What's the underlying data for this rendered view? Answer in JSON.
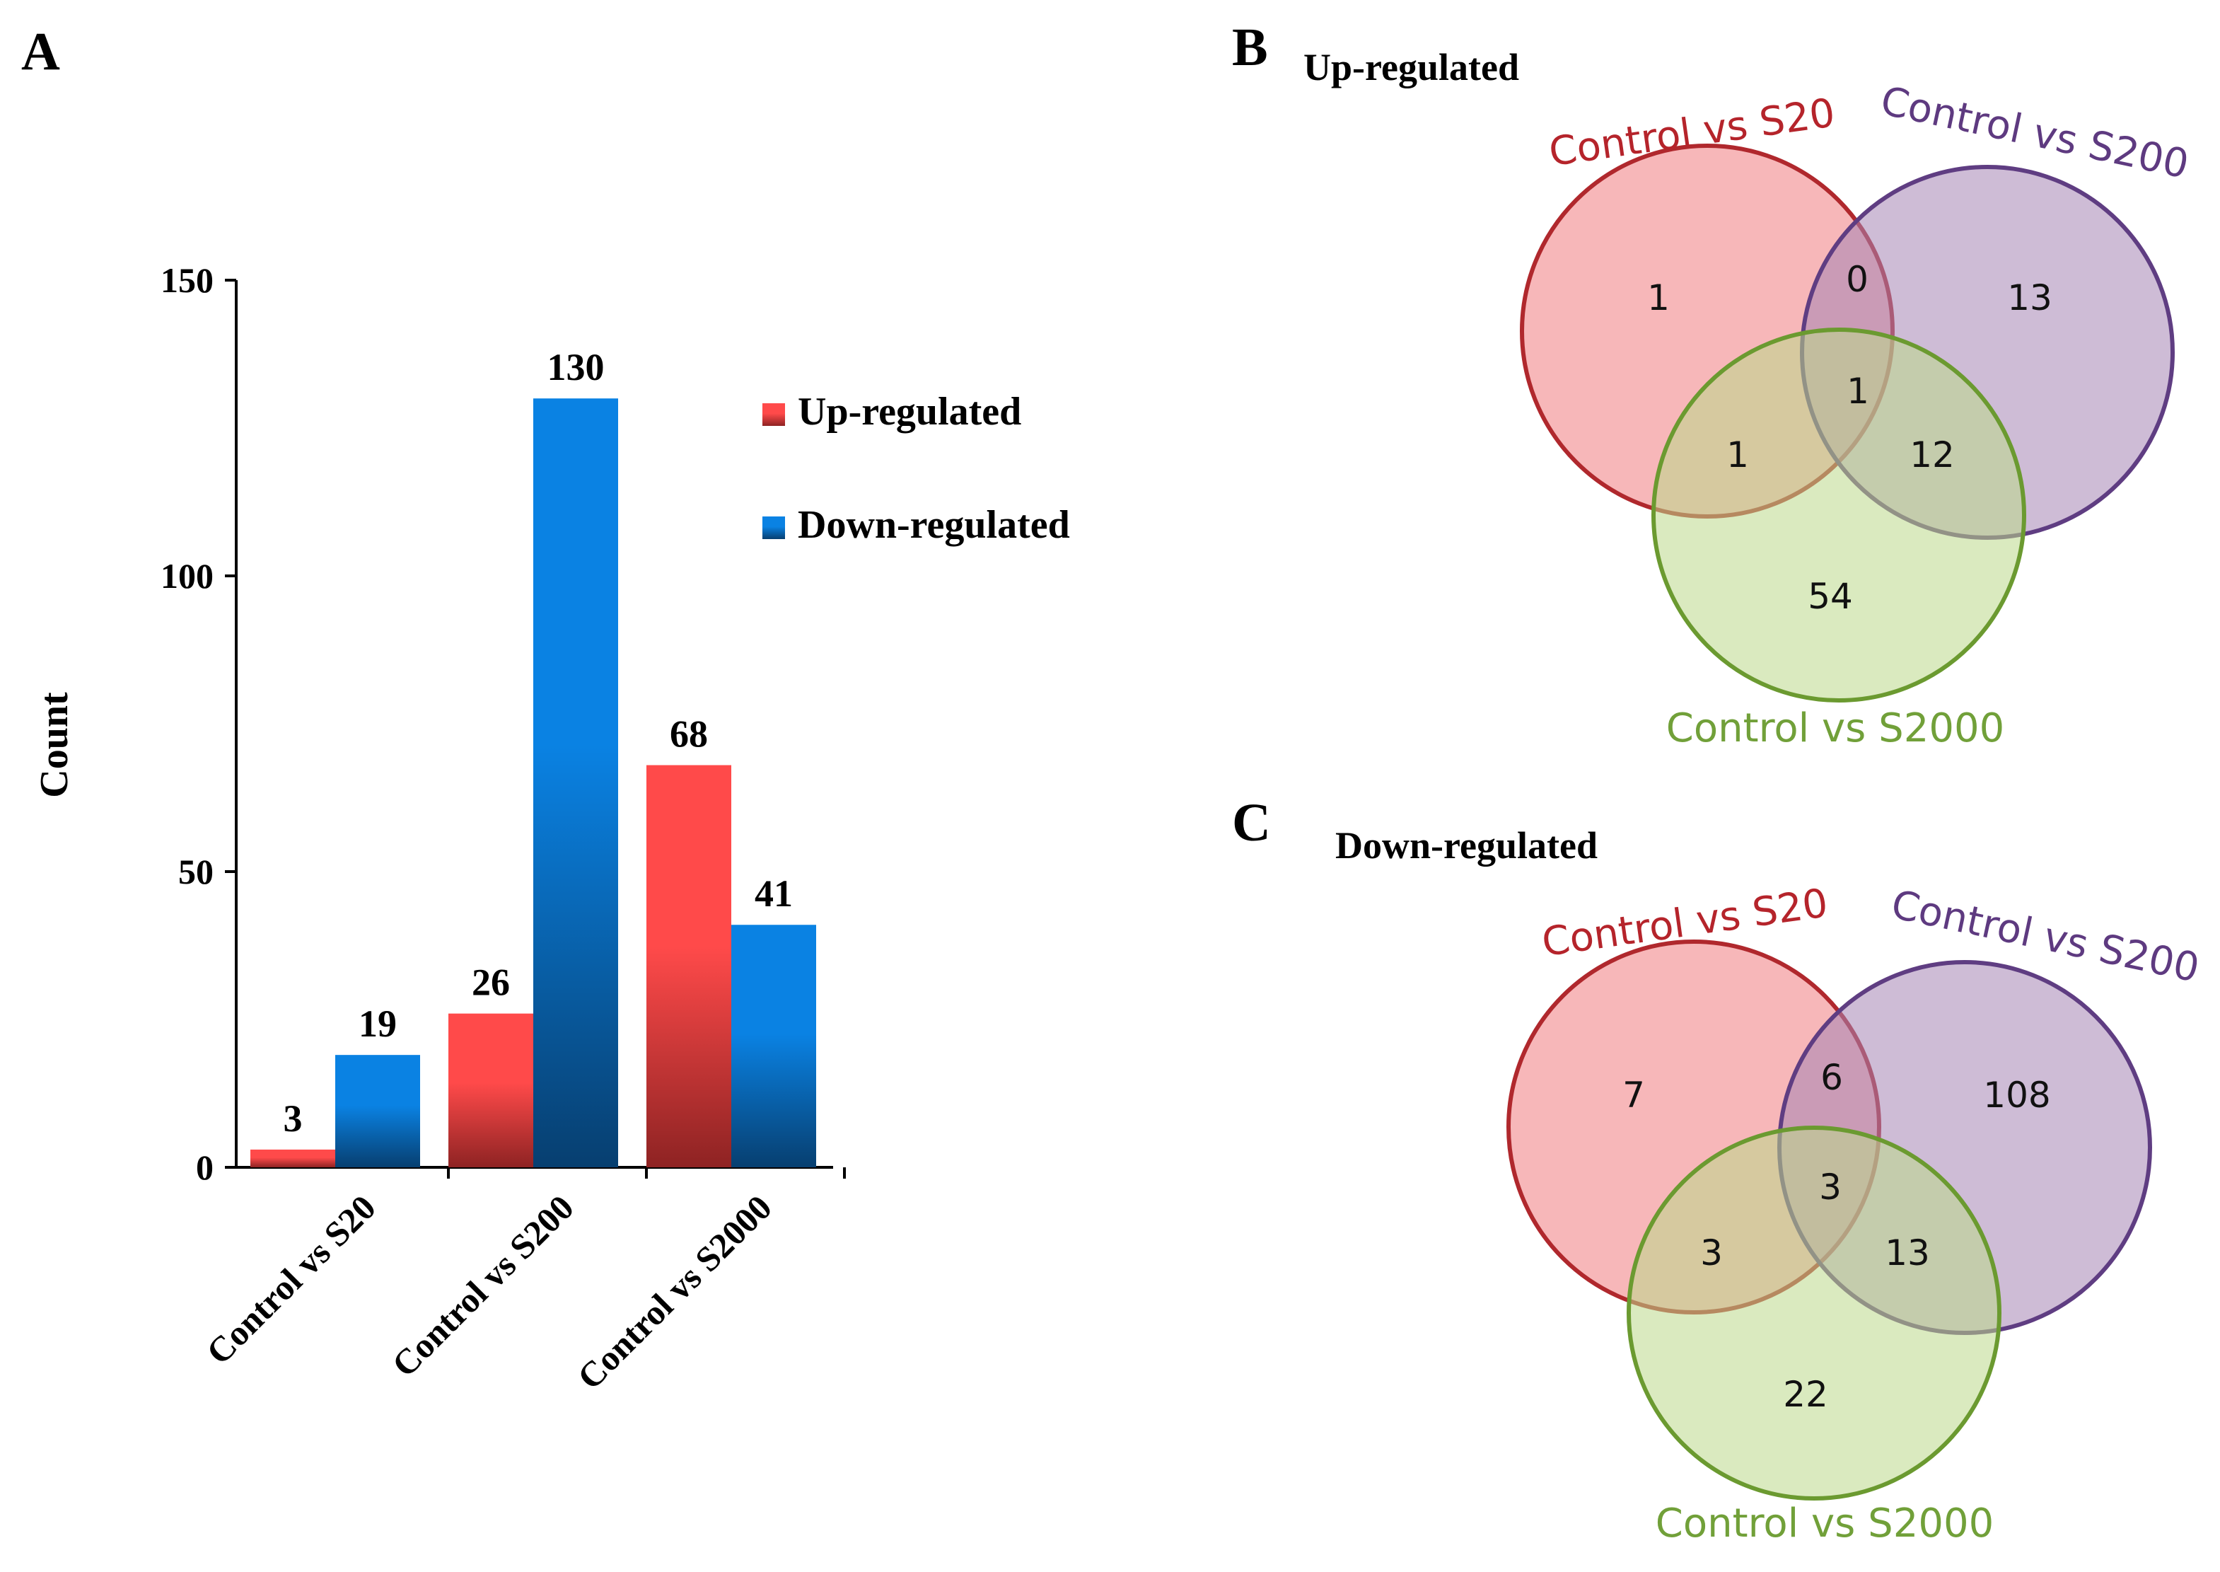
{
  "panels": {
    "a": "A",
    "b": "B",
    "c": "C"
  },
  "colors": {
    "up_top": "#ff4a4a",
    "up_bottom": "#8e2323",
    "down_top": "#0a82e3",
    "down_bottom": "#073f70",
    "set1_stroke": "#b0282d",
    "set1_fill": "#f07c80",
    "set2_stroke": "#5f3d82",
    "set2_fill": "#a585b5",
    "set3_stroke": "#6b9a30",
    "set3_fill": "#bcd98a",
    "set1_text": "#b5242b",
    "set2_text": "#5e3a80",
    "set3_text": "#71a039"
  },
  "chart_data": [
    {
      "type": "bar",
      "ylabel": "Count",
      "ylim": [
        0,
        150
      ],
      "yticks": [
        0,
        50,
        100,
        150
      ],
      "categories": [
        "Control vs S20",
        "Control vs S200",
        "Control vs S2000"
      ],
      "series": [
        {
          "name": "Up-regulated",
          "values": [
            3,
            26,
            68
          ]
        },
        {
          "name": "Down-regulated",
          "values": [
            19,
            130,
            41
          ]
        }
      ],
      "legend_position": "upper-right",
      "grid": false
    },
    {
      "type": "venn",
      "title": "Up-regulated",
      "sets": [
        "Control vs S20",
        "Control vs S200",
        "Control vs S2000"
      ],
      "regions": {
        "only_1": 1,
        "only_2": 13,
        "only_3": 54,
        "1_2": 0,
        "1_3": 1,
        "2_3": 12,
        "1_2_3": 1
      }
    },
    {
      "type": "venn",
      "title": "Down-regulated",
      "sets": [
        "Control vs S20",
        "Control vs S200",
        "Control vs S2000"
      ],
      "regions": {
        "only_1": 7,
        "only_2": 108,
        "only_3": 22,
        "1_2": 6,
        "1_3": 3,
        "2_3": 13,
        "1_2_3": 3
      }
    }
  ]
}
